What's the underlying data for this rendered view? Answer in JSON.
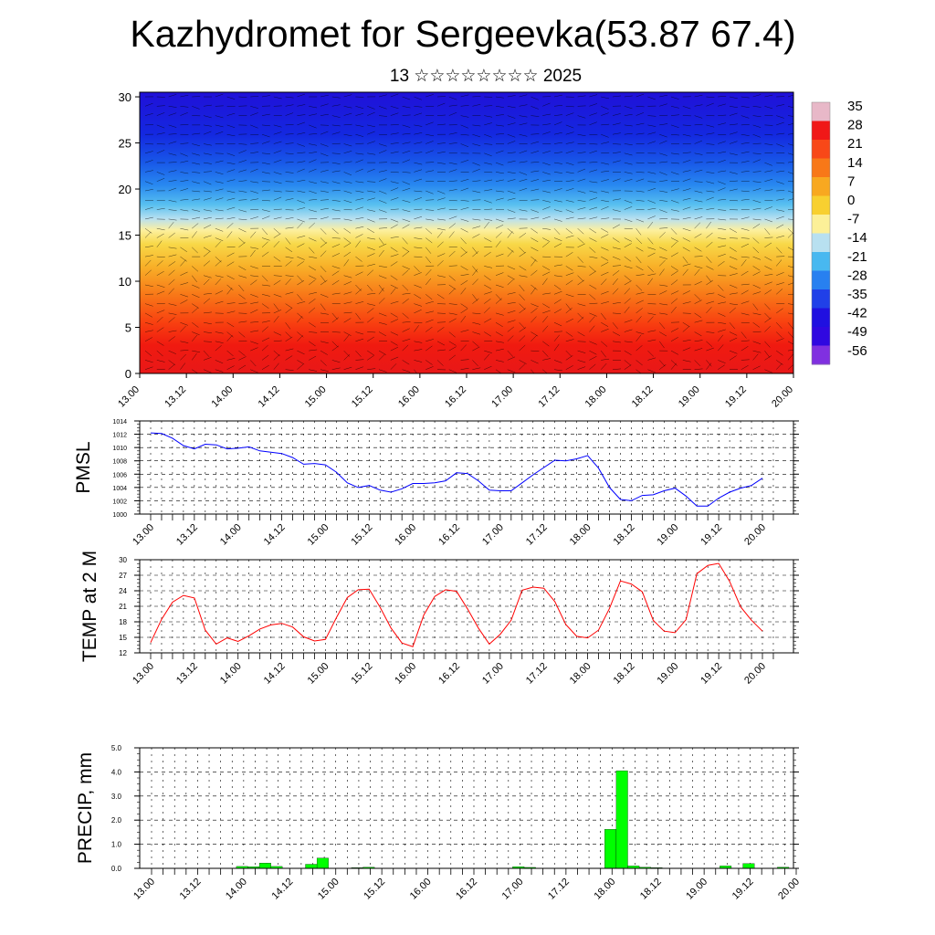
{
  "title": "Kazhydromet for Sergeevka(53.87 67.4)",
  "subtitle": "13 ☆☆☆☆☆☆☆☆ 2025",
  "colors": {
    "pmsl_line": "#0000ff",
    "temp_line": "#ff0000",
    "precip_bar": "#00ff00",
    "wind_barb": "#000000"
  },
  "chart_data": [
    {
      "type": "heatmap",
      "name": "upper-air-cross-section",
      "x_tick_labels": [
        "13.00",
        "13.12",
        "14.00",
        "14.12",
        "15.00",
        "15.12",
        "16.00",
        "16.12",
        "17.00",
        "17.12",
        "18.00",
        "18.12",
        "19.00",
        "19.12",
        "20.00"
      ],
      "y_ticks": [
        0,
        5,
        10,
        15,
        20,
        25,
        30
      ],
      "ylim": [
        0,
        30.5
      ],
      "colorbar_labels": [
        "35",
        "28",
        "21",
        "14",
        "7",
        "0",
        "-7",
        "-14",
        "-21",
        "-28",
        "-35",
        "-42",
        "-49",
        "-56"
      ],
      "colorbar_colors": [
        "#e8b8c8",
        "#f01818",
        "#f84818",
        "#f87818",
        "#f8a820",
        "#f8d030",
        "#fcf098",
        "#b8e0f0",
        "#48b8f0",
        "#2880f0",
        "#2040e8",
        "#2010e0",
        "#3008e0",
        "#8030e0"
      ],
      "level_profile": [
        {
          "level": 0,
          "value": 30
        },
        {
          "level": 5,
          "value": 21
        },
        {
          "level": 10,
          "value": 8
        },
        {
          "level": 15,
          "value": -7
        },
        {
          "level": 18,
          "value": -24
        },
        {
          "level": 22,
          "value": -42
        },
        {
          "level": 26,
          "value": -56
        },
        {
          "level": 30,
          "value": -60
        }
      ]
    },
    {
      "type": "line",
      "name": "pmsl",
      "ylabel": "PMSL",
      "x_tick_labels": [
        "13.00",
        "13.12",
        "14.00",
        "14.12",
        "15.00",
        "15.12",
        "16.00",
        "16.12",
        "17.00",
        "17.12",
        "18.00",
        "18.12",
        "19.00",
        "19.12",
        "20.00"
      ],
      "y_ticks": [
        "1000",
        "1002",
        "1004",
        "1006",
        "1008",
        "1010",
        "1012",
        "1014"
      ],
      "ylim": [
        1000,
        1014
      ],
      "x": [
        0,
        3,
        6,
        9,
        12,
        15,
        18,
        21,
        24,
        27,
        30,
        33,
        36,
        39,
        42,
        45,
        48,
        51,
        54,
        57,
        60,
        63,
        66,
        69,
        72,
        75,
        78,
        81,
        84,
        87,
        90,
        93,
        96,
        99,
        102,
        105,
        108,
        111,
        114,
        117,
        120,
        123,
        126,
        129,
        132,
        135,
        138,
        141,
        144,
        147,
        150,
        153,
        156,
        159,
        162,
        165,
        168
      ],
      "values": [
        1012.2,
        1012.1,
        1011.4,
        1010.3,
        1009.8,
        1010.5,
        1010.4,
        1009.8,
        1009.9,
        1010.1,
        1009.5,
        1009.3,
        1009.1,
        1008.5,
        1007.5,
        1007.6,
        1007.4,
        1006.3,
        1004.7,
        1004.0,
        1004.3,
        1003.6,
        1003.3,
        1003.8,
        1004.6,
        1004.6,
        1004.7,
        1005.0,
        1006.2,
        1006.1,
        1005.0,
        1003.6,
        1003.5,
        1003.5,
        1004.7,
        1005.9,
        1007.0,
        1008.1,
        1008.0,
        1008.3,
        1008.8,
        1006.9,
        1004.0,
        1002.2,
        1002.0,
        1002.8,
        1002.9,
        1003.5,
        1003.9,
        1002.7,
        1001.2,
        1001.2,
        1002.4,
        1003.3,
        1003.9,
        1004.3,
        1005.4
      ]
    },
    {
      "type": "line",
      "name": "temperature-2m",
      "ylabel": "TEMP at 2 M",
      "x_tick_labels": [
        "13.00",
        "13.12",
        "14.00",
        "14.12",
        "15.00",
        "15.12",
        "16.00",
        "16.12",
        "17.00",
        "17.12",
        "18.00",
        "18.12",
        "19.00",
        "19.12",
        "20.00"
      ],
      "y_ticks": [
        "12",
        "15",
        "18",
        "21",
        "24",
        "27",
        "30"
      ],
      "ylim": [
        12,
        30
      ],
      "x": [
        0,
        3,
        6,
        9,
        12,
        15,
        18,
        21,
        24,
        27,
        30,
        33,
        36,
        39,
        42,
        45,
        48,
        51,
        54,
        57,
        60,
        63,
        66,
        69,
        72,
        75,
        78,
        81,
        84,
        87,
        90,
        93,
        96,
        99,
        102,
        105,
        108,
        111,
        114,
        117,
        120,
        123,
        126,
        129,
        132,
        135,
        138,
        141,
        144,
        147,
        150,
        153,
        156,
        159,
        162,
        165,
        168
      ],
      "values": [
        14.0,
        18.5,
        21.8,
        23.1,
        22.6,
        16.4,
        13.7,
        14.9,
        14.2,
        15.3,
        16.6,
        17.4,
        17.7,
        17.0,
        15.1,
        14.3,
        14.6,
        18.8,
        22.7,
        24.2,
        24.3,
        20.8,
        16.8,
        13.9,
        13.2,
        19.3,
        22.9,
        24.2,
        23.9,
        20.5,
        16.8,
        13.7,
        15.6,
        18.3,
        24.1,
        24.7,
        24.5,
        21.9,
        17.5,
        15.2,
        14.9,
        16.4,
        20.6,
        25.9,
        25.3,
        23.8,
        18.3,
        16.2,
        15.9,
        18.4,
        27.3,
        28.9,
        29.3,
        25.8,
        20.9,
        18.3,
        16.2
      ]
    },
    {
      "type": "bar",
      "name": "precipitation",
      "ylabel": "PRECIP, mm",
      "x_tick_labels": [
        "13.00",
        "13.12",
        "14.00",
        "14.12",
        "15.00",
        "15.12",
        "16.00",
        "16.12",
        "17.00",
        "17.12",
        "18.00",
        "18.12",
        "19.00",
        "19.12",
        "20.00"
      ],
      "y_ticks": [
        "0.0",
        "1.0",
        "2.0",
        "3.0",
        "4.0",
        "5.0"
      ],
      "ylim": [
        0,
        5
      ],
      "bar_width_hours": 3,
      "x": [
        24,
        27,
        30,
        33,
        42,
        45,
        54,
        57,
        96,
        99,
        120,
        123,
        126,
        129,
        132,
        150,
        156,
        165
      ],
      "values": [
        0.08,
        0.07,
        0.22,
        0.08,
        0.17,
        0.43,
        0.03,
        0.05,
        0.07,
        0.04,
        1.62,
        4.05,
        0.1,
        0.05,
        0.03,
        0.1,
        0.2,
        0.05
      ]
    }
  ]
}
